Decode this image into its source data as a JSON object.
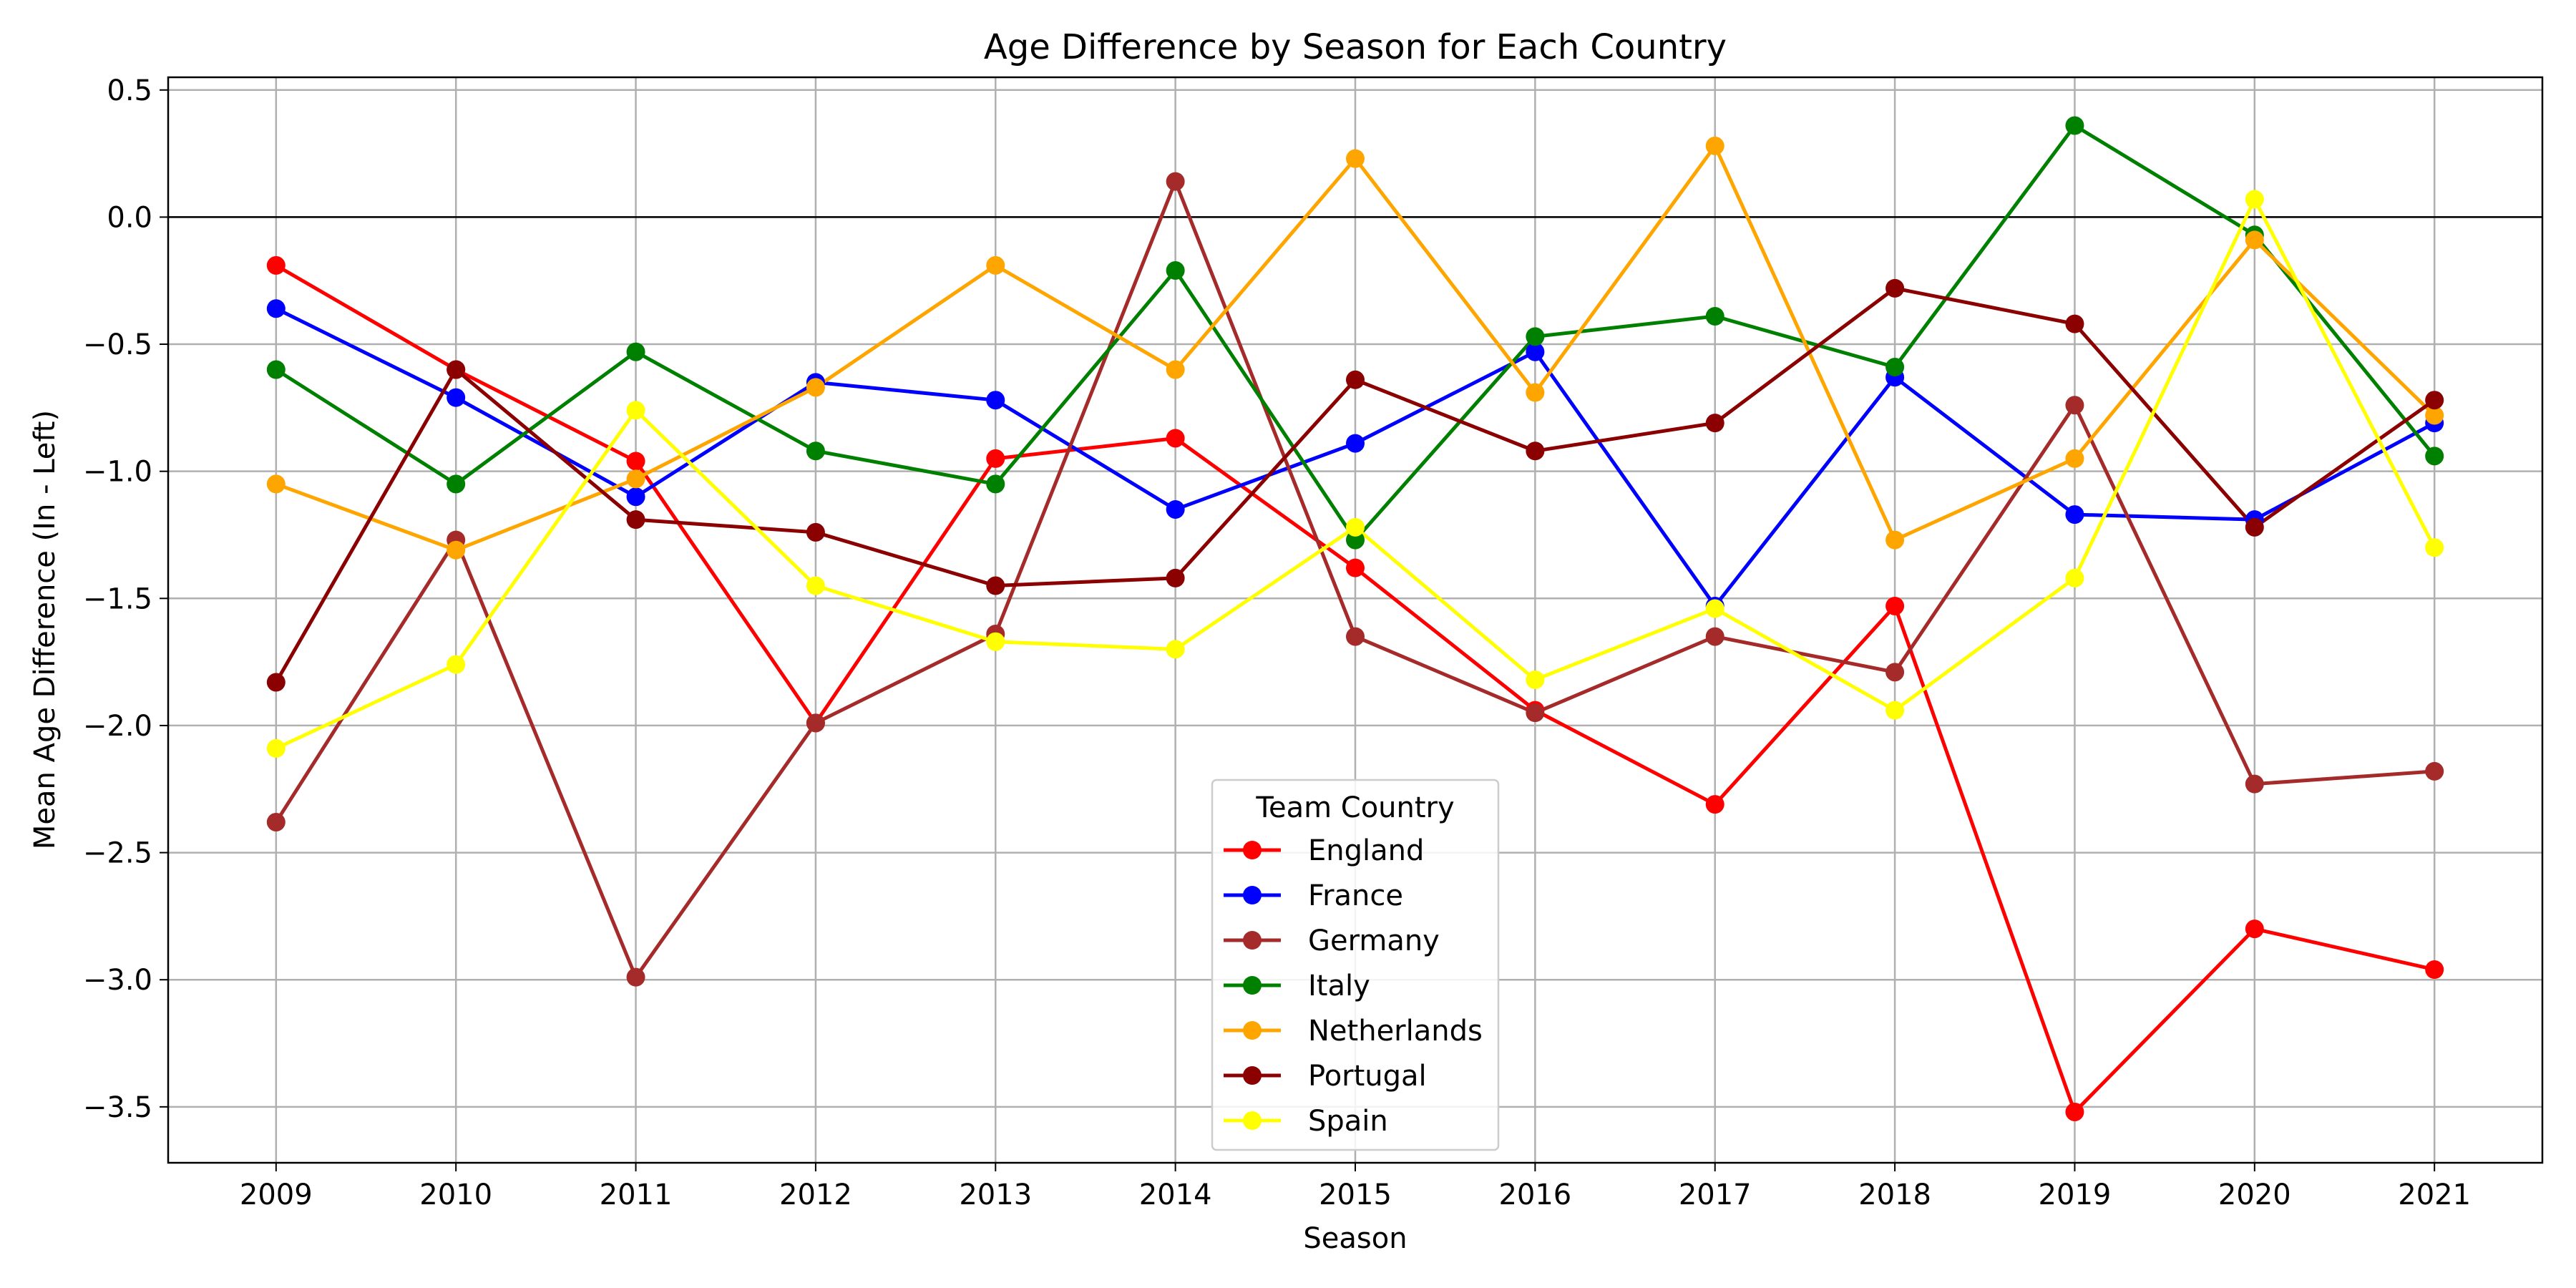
{
  "chart_data": {
    "type": "line",
    "title": "Age Difference by Season for Each Country",
    "xlabel": "Season",
    "ylabel": "Mean Age Difference (In - Left)",
    "x": [
      2009,
      2010,
      2011,
      2012,
      2013,
      2014,
      2015,
      2016,
      2017,
      2018,
      2019,
      2020,
      2021
    ],
    "xticks": [
      "2009",
      "2010",
      "2011",
      "2012",
      "2013",
      "2014",
      "2015",
      "2016",
      "2017",
      "2018",
      "2019",
      "2020",
      "2021"
    ],
    "ylim": [
      -3.72,
      0.55
    ],
    "yticks": [
      0.5,
      0.0,
      -0.5,
      -1.0,
      -1.5,
      -2.0,
      -2.5,
      -3.0,
      -3.5
    ],
    "ytick_labels": [
      "0.5",
      "0.0",
      "−0.5",
      "−1.0",
      "−1.5",
      "−2.0",
      "−2.5",
      "−3.0",
      "−3.5"
    ],
    "grid": true,
    "reference_line_y": 0.0,
    "legend": {
      "title": "Team Country",
      "placement": "lower-center"
    },
    "series": [
      {
        "name": "England",
        "color": "#ff0000",
        "values": [
          -0.19,
          -0.6,
          -0.96,
          -1.99,
          -0.95,
          -0.87,
          -1.38,
          -1.94,
          -2.31,
          -1.53,
          -3.52,
          -2.8,
          -2.96
        ]
      },
      {
        "name": "France",
        "color": "#0000ff",
        "values": [
          -0.36,
          -0.71,
          -1.1,
          -0.65,
          -0.72,
          -1.15,
          -0.89,
          -0.53,
          -1.53,
          -0.63,
          -1.17,
          -1.19,
          -0.81
        ]
      },
      {
        "name": "Germany",
        "color": "#a52a2a",
        "values": [
          -2.38,
          -1.27,
          -2.99,
          -1.99,
          -1.64,
          0.14,
          -1.65,
          -1.95,
          -1.65,
          -1.79,
          -0.74,
          -2.23,
          -2.18
        ]
      },
      {
        "name": "Italy",
        "color": "#008000",
        "values": [
          -0.6,
          -1.05,
          -0.53,
          -0.92,
          -1.05,
          -0.21,
          -1.27,
          -0.47,
          -0.39,
          -0.59,
          0.36,
          -0.07,
          -0.94
        ]
      },
      {
        "name": "Netherlands",
        "color": "#ffa500",
        "values": [
          -1.05,
          -1.31,
          -1.03,
          -0.67,
          -0.19,
          -0.6,
          0.23,
          -0.69,
          0.28,
          -1.27,
          -0.95,
          -0.09,
          -0.78
        ]
      },
      {
        "name": "Portugal",
        "color": "#8b0000",
        "values": [
          -1.83,
          -0.6,
          -1.19,
          -1.24,
          -1.45,
          -1.42,
          -0.64,
          -0.92,
          -0.81,
          -0.28,
          -0.42,
          -1.22,
          -0.72
        ]
      },
      {
        "name": "Spain",
        "color": "#ffff00",
        "values": [
          -2.09,
          -1.76,
          -0.76,
          -1.45,
          -1.67,
          -1.7,
          -1.22,
          -1.82,
          -1.54,
          -1.94,
          -1.42,
          0.07,
          -1.3
        ]
      }
    ]
  }
}
